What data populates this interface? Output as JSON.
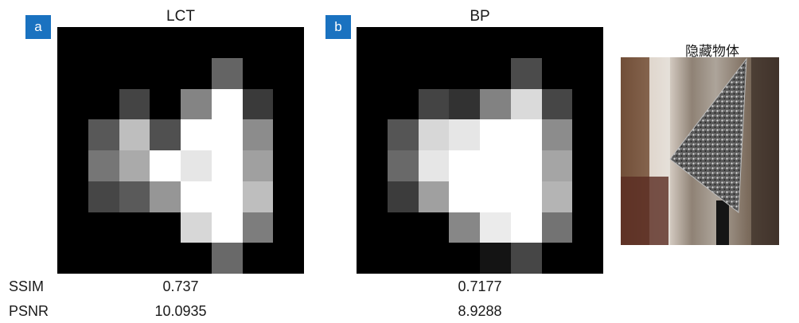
{
  "panels": [
    {
      "tag": "a",
      "title": "LCT",
      "ssim": "0.737",
      "psnr": "10.0935",
      "pixels": [
        [
          0,
          0,
          0,
          0,
          0,
          0,
          0,
          0
        ],
        [
          0,
          0,
          0,
          0,
          0,
          100,
          0,
          0
        ],
        [
          0,
          0,
          68,
          0,
          132,
          255,
          58,
          0
        ],
        [
          0,
          88,
          190,
          80,
          255,
          255,
          140,
          0
        ],
        [
          0,
          118,
          170,
          255,
          230,
          255,
          160,
          0
        ],
        [
          0,
          70,
          90,
          150,
          255,
          255,
          190,
          0
        ],
        [
          0,
          0,
          0,
          0,
          215,
          255,
          125,
          0
        ],
        [
          0,
          0,
          0,
          0,
          0,
          105,
          0,
          0
        ]
      ]
    },
    {
      "tag": "b",
      "title": "BP",
      "ssim": "0.7177",
      "psnr": "8.9288",
      "pixels": [
        [
          0,
          0,
          0,
          0,
          0,
          0,
          0,
          0
        ],
        [
          0,
          0,
          0,
          0,
          0,
          75,
          0,
          0
        ],
        [
          0,
          0,
          68,
          50,
          130,
          218,
          70,
          0
        ],
        [
          0,
          85,
          215,
          230,
          255,
          255,
          140,
          0
        ],
        [
          0,
          105,
          230,
          255,
          255,
          255,
          165,
          0
        ],
        [
          0,
          60,
          160,
          255,
          255,
          255,
          180,
          0
        ],
        [
          0,
          0,
          0,
          135,
          235,
          255,
          115,
          0
        ],
        [
          0,
          0,
          0,
          0,
          20,
          70,
          0,
          0
        ]
      ]
    }
  ],
  "metrics": {
    "ssim_label": "SSIM",
    "psnr_label": "PSNR"
  },
  "photo": {
    "title": "隐藏物体"
  }
}
